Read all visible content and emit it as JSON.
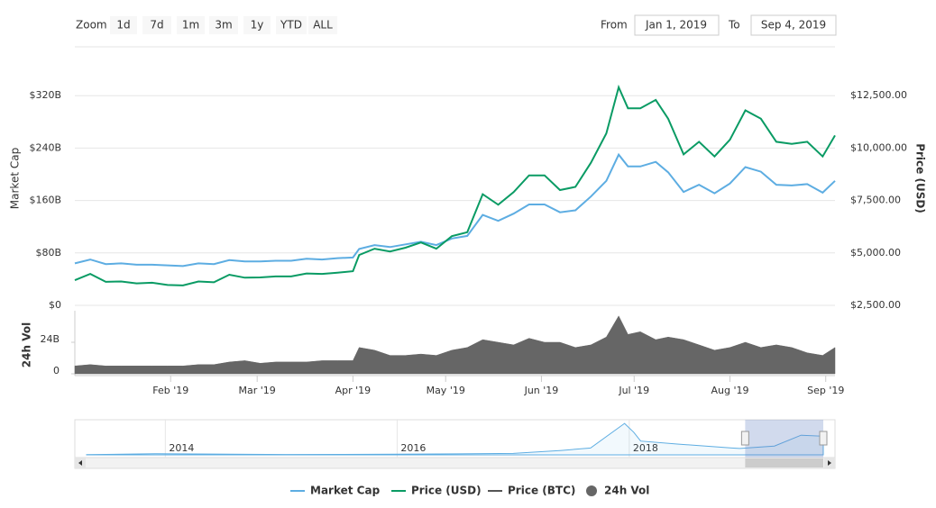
{
  "zoom": {
    "label": "Zoom",
    "buttons": [
      "1d",
      "7d",
      "1m",
      "3m",
      "1y",
      "YTD",
      "ALL"
    ]
  },
  "range": {
    "from_label": "From",
    "from": "Jan 1, 2019",
    "to_label": "To",
    "to": "Sep 4, 2019"
  },
  "legend": {
    "position": "bottom",
    "items": [
      {
        "name": "Price (BTC)",
        "color": "#555555"
      }
    ]
  },
  "chart_data": [
    {
      "type": "line",
      "x": [
        "2019-01-01",
        "2019-01-06",
        "2019-01-11",
        "2019-01-16",
        "2019-01-21",
        "2019-01-26",
        "2019-01-31",
        "2019-02-05",
        "2019-02-10",
        "2019-02-15",
        "2019-02-20",
        "2019-02-25",
        "2019-03-02",
        "2019-03-07",
        "2019-03-12",
        "2019-03-17",
        "2019-03-22",
        "2019-03-27",
        "2019-04-01",
        "2019-04-03",
        "2019-04-08",
        "2019-04-13",
        "2019-04-18",
        "2019-04-23",
        "2019-04-28",
        "2019-05-03",
        "2019-05-08",
        "2019-05-13",
        "2019-05-18",
        "2019-05-23",
        "2019-05-28",
        "2019-06-02",
        "2019-06-07",
        "2019-06-12",
        "2019-06-17",
        "2019-06-22",
        "2019-06-26",
        "2019-06-29",
        "2019-07-03",
        "2019-07-08",
        "2019-07-12",
        "2019-07-17",
        "2019-07-22",
        "2019-07-27",
        "2019-08-01",
        "2019-08-06",
        "2019-08-11",
        "2019-08-16",
        "2019-08-21",
        "2019-08-26",
        "2019-08-31",
        "2019-09-04"
      ],
      "xlim": [
        "2019-01-01",
        "2019-09-04"
      ],
      "ylabel": "Market Cap",
      "y2label": "Price (USD)",
      "ylim": [
        0,
        400
      ],
      "yticks": [
        {
          "value": 0,
          "label": "$0"
        },
        {
          "value": 80,
          "label": "$80B"
        },
        {
          "value": 160,
          "label": "$160B"
        },
        {
          "value": 240,
          "label": "$240B"
        },
        {
          "value": 320,
          "label": "$320B"
        }
      ],
      "y2lim": [
        2500,
        15000
      ],
      "y2ticks": [
        {
          "value": 2500,
          "label": "$2,500.00"
        },
        {
          "value": 5000,
          "label": "$5,000.00"
        },
        {
          "value": 7500,
          "label": "$7,500.00"
        },
        {
          "value": 10000,
          "label": "$10,000.00"
        },
        {
          "value": 12500,
          "label": "$12,500.00"
        }
      ],
      "grid": true,
      "series": [
        {
          "name": "Market Cap",
          "color": "#5dade2",
          "values": [
            64,
            70,
            63,
            64,
            62,
            62,
            61,
            60,
            64,
            63,
            69,
            67,
            67,
            68,
            68,
            71,
            70,
            72,
            73,
            86,
            92,
            89,
            93,
            97,
            92,
            102,
            106,
            138,
            129,
            140,
            154,
            154,
            142,
            145,
            166,
            190,
            230,
            212,
            212,
            219,
            203,
            173,
            184,
            171,
            186,
            211,
            204,
            184,
            183,
            185,
            172,
            190
          ]
        },
        {
          "name": "Price (USD)",
          "color": "#0a9b64",
          "axis": "y2",
          "values": [
            3700,
            4000,
            3620,
            3640,
            3550,
            3580,
            3470,
            3450,
            3640,
            3600,
            3960,
            3820,
            3830,
            3880,
            3880,
            4020,
            4000,
            4060,
            4130,
            4900,
            5200,
            5070,
            5250,
            5500,
            5200,
            5800,
            5990,
            7800,
            7300,
            7900,
            8700,
            8700,
            8000,
            8150,
            9300,
            10700,
            12900,
            11900,
            11900,
            12300,
            11400,
            9700,
            10300,
            9600,
            10400,
            11800,
            11400,
            10300,
            10200,
            10300,
            9600,
            10600
          ]
        }
      ]
    },
    {
      "type": "area",
      "x": [
        "2019-01-01",
        "2019-01-06",
        "2019-01-11",
        "2019-01-16",
        "2019-01-21",
        "2019-01-26",
        "2019-01-31",
        "2019-02-05",
        "2019-02-10",
        "2019-02-15",
        "2019-02-20",
        "2019-02-25",
        "2019-03-02",
        "2019-03-07",
        "2019-03-12",
        "2019-03-17",
        "2019-03-22",
        "2019-03-27",
        "2019-04-01",
        "2019-04-03",
        "2019-04-08",
        "2019-04-13",
        "2019-04-18",
        "2019-04-23",
        "2019-04-28",
        "2019-05-03",
        "2019-05-08",
        "2019-05-13",
        "2019-05-18",
        "2019-05-23",
        "2019-05-28",
        "2019-06-02",
        "2019-06-07",
        "2019-06-12",
        "2019-06-17",
        "2019-06-22",
        "2019-06-26",
        "2019-06-29",
        "2019-07-03",
        "2019-07-08",
        "2019-07-12",
        "2019-07-17",
        "2019-07-22",
        "2019-07-27",
        "2019-08-01",
        "2019-08-06",
        "2019-08-11",
        "2019-08-16",
        "2019-08-21",
        "2019-08-26",
        "2019-08-31",
        "2019-09-04"
      ],
      "xlim": [
        "2019-01-01",
        "2019-09-04"
      ],
      "xticks": [
        {
          "value": "2019-02-01",
          "label": "Feb '19"
        },
        {
          "value": "2019-03-01",
          "label": "Mar '19"
        },
        {
          "value": "2019-04-01",
          "label": "Apr '19"
        },
        {
          "value": "2019-05-01",
          "label": "May '19"
        },
        {
          "value": "2019-06-01",
          "label": "Jun '19"
        },
        {
          "value": "2019-07-01",
          "label": "Jul '19"
        },
        {
          "value": "2019-08-01",
          "label": "Aug '19"
        },
        {
          "value": "2019-09-01",
          "label": "Sep '19"
        }
      ],
      "ylabel": "24h Vol",
      "ylim": [
        0,
        48
      ],
      "yticks": [
        0,
        {
          "value": 24,
          "label": "24B"
        }
      ],
      "series": [
        {
          "name": "24h Vol",
          "color": "#666666",
          "values": [
            6,
            7,
            6,
            6,
            6,
            6,
            6,
            6,
            7,
            7,
            9,
            10,
            8,
            9,
            9,
            9,
            10,
            10,
            10,
            20,
            18,
            14,
            14,
            15,
            14,
            18,
            20,
            26,
            24,
            22,
            27,
            24,
            24,
            20,
            22,
            28,
            44,
            30,
            32,
            26,
            28,
            26,
            22,
            18,
            20,
            24,
            20,
            22,
            20,
            16,
            14,
            20
          ]
        }
      ]
    },
    {
      "type": "area",
      "x": [
        "2013-04-28",
        "2013-12-01",
        "2014-06-01",
        "2015-01-15",
        "2016-01-01",
        "2017-01-01",
        "2017-06-01",
        "2017-09-01",
        "2017-12-17",
        "2018-01-15",
        "2018-02-06",
        "2018-06-01",
        "2018-11-20",
        "2018-12-15",
        "2019-04-03",
        "2019-06-26",
        "2019-09-04"
      ],
      "xlim": [
        "2013-04-28",
        "2019-09-04"
      ],
      "xticks": [
        {
          "value": "2014-01-01",
          "label": "2014"
        },
        {
          "value": "2016-01-01",
          "label": "2016"
        },
        {
          "value": "2018-01-01",
          "label": "2018"
        }
      ],
      "ylim": [
        0,
        330
      ],
      "series": [
        {
          "name": "Market Cap",
          "color": "#5dade2",
          "values": [
            1.5,
            12,
            8,
            4,
            6,
            15,
            45,
            70,
            320,
            230,
            140,
            110,
            70,
            65,
            90,
            200,
            190
          ]
        }
      ]
    }
  ]
}
